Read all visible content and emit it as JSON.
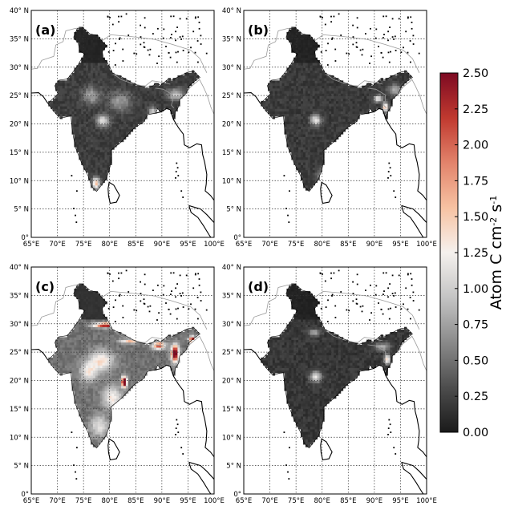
{
  "panels": [
    {
      "label": "(a)",
      "variant": "a"
    },
    {
      "label": "(b)",
      "variant": "b"
    },
    {
      "label": "(c)",
      "variant": "c"
    },
    {
      "label": "(d)",
      "variant": "d"
    }
  ],
  "lat_ticks": [
    "0°",
    "5° N",
    "10° N",
    "15° N",
    "20° N",
    "25° N",
    "30° N",
    "35° N",
    "40° N"
  ],
  "lon_ticks": [
    "65°E",
    "70°E",
    "75°E",
    "80°E",
    "85°E",
    "90°E",
    "95°E",
    "100°E"
  ],
  "colorbar": {
    "label": "Atom C cm",
    "label_sup1": "-2",
    "label_mid": " s",
    "label_sup2": "-1",
    "ticks": [
      "0.00",
      "0.25",
      "0.50",
      "0.75",
      "1.00",
      "1.25",
      "1.50",
      "1.75",
      "2.00",
      "2.25",
      "2.50"
    ],
    "range": [
      0,
      2.5
    ],
    "colormap": [
      "#1a1a1a",
      "#4d4d4d",
      "#8a8a8a",
      "#c4c4c4",
      "#f5f1ee",
      "#f7c2a2",
      "#e2836b",
      "#c0392f",
      "#7d0a22"
    ]
  },
  "map_extent": {
    "lon": [
      65,
      100
    ],
    "lat": [
      0,
      40
    ]
  },
  "colors": {
    "frame": "#000000",
    "grid": "#333333",
    "coast": "#000000",
    "border": "#9a9a9a"
  }
}
